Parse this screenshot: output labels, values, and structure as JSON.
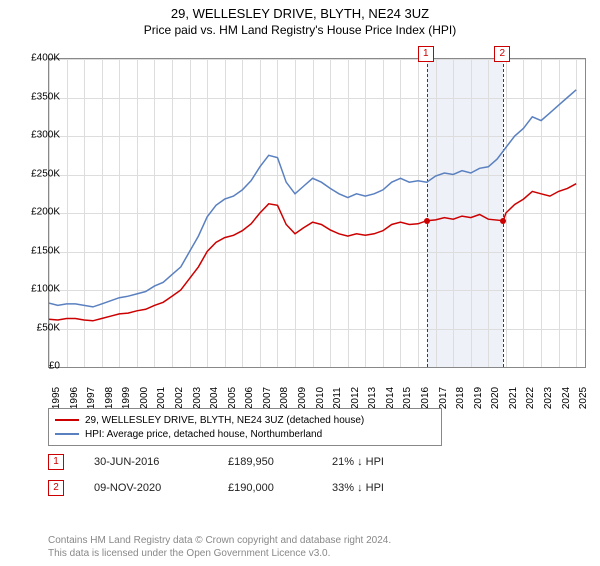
{
  "title": "29, WELLESLEY DRIVE, BLYTH, NE24 3UZ",
  "subtitle": "Price paid vs. HM Land Registry's House Price Index (HPI)",
  "chart": {
    "type": "line",
    "xlim": [
      1995,
      2025.5
    ],
    "ylim": [
      0,
      400000
    ],
    "ytick_step": 50000,
    "ytick_labels": [
      "£0",
      "£50K",
      "£100K",
      "£150K",
      "£200K",
      "£250K",
      "£300K",
      "£350K",
      "£400K"
    ],
    "xtick_step": 1,
    "xticks": [
      1995,
      1996,
      1997,
      1998,
      1999,
      2000,
      2001,
      2002,
      2003,
      2004,
      2005,
      2006,
      2007,
      2008,
      2009,
      2010,
      2011,
      2012,
      2013,
      2014,
      2015,
      2016,
      2017,
      2018,
      2019,
      2020,
      2021,
      2022,
      2023,
      2024,
      2025
    ],
    "background_color": "#ffffff",
    "grid_color": "#dddddd",
    "shade_color": "#eef1f8",
    "shade_range": [
      2016.5,
      2020.85
    ],
    "vlines": [
      2016.5,
      2020.85
    ],
    "series": [
      {
        "name": "hpi",
        "color": "#5a80c0",
        "width": 1.5,
        "data": [
          [
            1995,
            83000
          ],
          [
            1995.5,
            80000
          ],
          [
            1996,
            82000
          ],
          [
            1996.5,
            82000
          ],
          [
            1997,
            80000
          ],
          [
            1997.5,
            78000
          ],
          [
            1998,
            82000
          ],
          [
            1998.5,
            86000
          ],
          [
            1999,
            90000
          ],
          [
            1999.5,
            92000
          ],
          [
            2000,
            95000
          ],
          [
            2000.5,
            98000
          ],
          [
            2001,
            105000
          ],
          [
            2001.5,
            110000
          ],
          [
            2002,
            120000
          ],
          [
            2002.5,
            130000
          ],
          [
            2003,
            150000
          ],
          [
            2003.5,
            170000
          ],
          [
            2004,
            195000
          ],
          [
            2004.5,
            210000
          ],
          [
            2005,
            218000
          ],
          [
            2005.5,
            222000
          ],
          [
            2006,
            230000
          ],
          [
            2006.5,
            242000
          ],
          [
            2007,
            260000
          ],
          [
            2007.5,
            275000
          ],
          [
            2008,
            272000
          ],
          [
            2008.5,
            240000
          ],
          [
            2009,
            225000
          ],
          [
            2009.5,
            235000
          ],
          [
            2010,
            245000
          ],
          [
            2010.5,
            240000
          ],
          [
            2011,
            232000
          ],
          [
            2011.5,
            225000
          ],
          [
            2012,
            220000
          ],
          [
            2012.5,
            225000
          ],
          [
            2013,
            222000
          ],
          [
            2013.5,
            225000
          ],
          [
            2014,
            230000
          ],
          [
            2014.5,
            240000
          ],
          [
            2015,
            245000
          ],
          [
            2015.5,
            240000
          ],
          [
            2016,
            242000
          ],
          [
            2016.5,
            240000
          ],
          [
            2017,
            248000
          ],
          [
            2017.5,
            252000
          ],
          [
            2018,
            250000
          ],
          [
            2018.5,
            255000
          ],
          [
            2019,
            252000
          ],
          [
            2019.5,
            258000
          ],
          [
            2020,
            260000
          ],
          [
            2020.5,
            270000
          ],
          [
            2021,
            285000
          ],
          [
            2021.5,
            300000
          ],
          [
            2022,
            310000
          ],
          [
            2022.5,
            325000
          ],
          [
            2023,
            320000
          ],
          [
            2023.5,
            330000
          ],
          [
            2024,
            340000
          ],
          [
            2024.5,
            350000
          ],
          [
            2025,
            360000
          ]
        ]
      },
      {
        "name": "property",
        "color": "#cc0000",
        "width": 1.5,
        "data": [
          [
            1995,
            62000
          ],
          [
            1995.5,
            61000
          ],
          [
            1996,
            63000
          ],
          [
            1996.5,
            63000
          ],
          [
            1997,
            61000
          ],
          [
            1997.5,
            60000
          ],
          [
            1998,
            63000
          ],
          [
            1998.5,
            66000
          ],
          [
            1999,
            69000
          ],
          [
            1999.5,
            70000
          ],
          [
            2000,
            73000
          ],
          [
            2000.5,
            75000
          ],
          [
            2001,
            80000
          ],
          [
            2001.5,
            84000
          ],
          [
            2002,
            92000
          ],
          [
            2002.5,
            100000
          ],
          [
            2003,
            115000
          ],
          [
            2003.5,
            130000
          ],
          [
            2004,
            150000
          ],
          [
            2004.5,
            162000
          ],
          [
            2005,
            168000
          ],
          [
            2005.5,
            171000
          ],
          [
            2006,
            177000
          ],
          [
            2006.5,
            186000
          ],
          [
            2007,
            200000
          ],
          [
            2007.5,
            212000
          ],
          [
            2008,
            210000
          ],
          [
            2008.5,
            185000
          ],
          [
            2009,
            173000
          ],
          [
            2009.5,
            181000
          ],
          [
            2010,
            188000
          ],
          [
            2010.5,
            185000
          ],
          [
            2011,
            178000
          ],
          [
            2011.5,
            173000
          ],
          [
            2012,
            170000
          ],
          [
            2012.5,
            173000
          ],
          [
            2013,
            171000
          ],
          [
            2013.5,
            173000
          ],
          [
            2014,
            177000
          ],
          [
            2014.5,
            185000
          ],
          [
            2015,
            188000
          ],
          [
            2015.5,
            185000
          ],
          [
            2016,
            186000
          ],
          [
            2016.5,
            189950
          ],
          [
            2017,
            191000
          ],
          [
            2017.5,
            194000
          ],
          [
            2018,
            192000
          ],
          [
            2018.5,
            196000
          ],
          [
            2019,
            194000
          ],
          [
            2019.5,
            198000
          ],
          [
            2020,
            192000
          ],
          [
            2020.85,
            190000
          ],
          [
            2021,
            200000
          ],
          [
            2021.5,
            211000
          ],
          [
            2022,
            218000
          ],
          [
            2022.5,
            228000
          ],
          [
            2023,
            225000
          ],
          [
            2023.5,
            222000
          ],
          [
            2024,
            228000
          ],
          [
            2024.5,
            232000
          ],
          [
            2025,
            238000
          ]
        ]
      }
    ],
    "markers": [
      {
        "label": "1",
        "x": 2016.5,
        "y": 189950
      },
      {
        "label": "2",
        "x": 2020.85,
        "y": 190000
      }
    ]
  },
  "legend": {
    "items": [
      {
        "color": "#cc0000",
        "label": "29, WELLESLEY DRIVE, BLYTH, NE24 3UZ (detached house)"
      },
      {
        "color": "#5a80c0",
        "label": "HPI: Average price, detached house, Northumberland"
      }
    ]
  },
  "sales": [
    {
      "marker": "1",
      "date": "30-JUN-2016",
      "price": "£189,950",
      "delta": "21% ↓ HPI"
    },
    {
      "marker": "2",
      "date": "09-NOV-2020",
      "price": "£190,000",
      "delta": "33% ↓ HPI"
    }
  ],
  "attribution": {
    "line1": "Contains HM Land Registry data © Crown copyright and database right 2024.",
    "line2": "This data is licensed under the Open Government Licence v3.0."
  }
}
